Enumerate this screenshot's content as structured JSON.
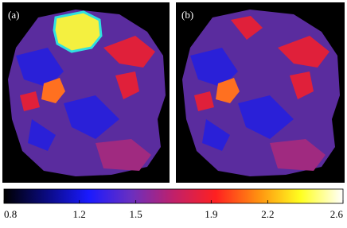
{
  "panels": [
    {
      "label": "(a)"
    },
    {
      "label": "(b)"
    }
  ],
  "colorbar": {
    "lim": [
      0.8,
      2.6
    ],
    "ticks": [
      0.8,
      1.2,
      1.5,
      1.9,
      2.2,
      2.6
    ],
    "colors": [
      "#000000",
      "#0a0a80",
      "#1a1aff",
      "#6a2fc0",
      "#c0206a",
      "#ff2020",
      "#ff9010",
      "#ffff20",
      "#ffffff"
    ]
  }
}
